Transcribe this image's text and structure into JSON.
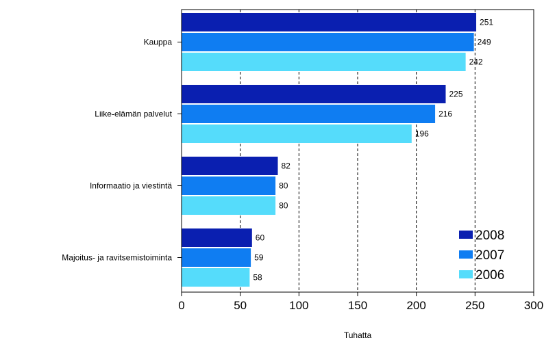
{
  "chart_data": {
    "type": "bar",
    "orientation": "horizontal",
    "title": "",
    "xlabel": "Tuhatta",
    "ylabel": "",
    "xlim": [
      0,
      300
    ],
    "xticks": [
      0,
      50,
      100,
      150,
      200,
      250,
      300
    ],
    "grid": "vertical dashed",
    "legend_position": "bottom-right",
    "categories": [
      "Kauppa",
      "Liike-elämän palvelut",
      "Informaatio ja viestintä",
      "Majoitus- ja ravitsemistoiminta"
    ],
    "series": [
      {
        "name": "2008",
        "color": "#0a1fb0",
        "values": [
          251,
          225,
          82,
          60
        ]
      },
      {
        "name": "2007",
        "color": "#0f7df2",
        "values": [
          249,
          216,
          80,
          59
        ]
      },
      {
        "name": "2006",
        "color": "#55dcfb",
        "values": [
          242,
          196,
          80,
          58
        ]
      }
    ]
  }
}
